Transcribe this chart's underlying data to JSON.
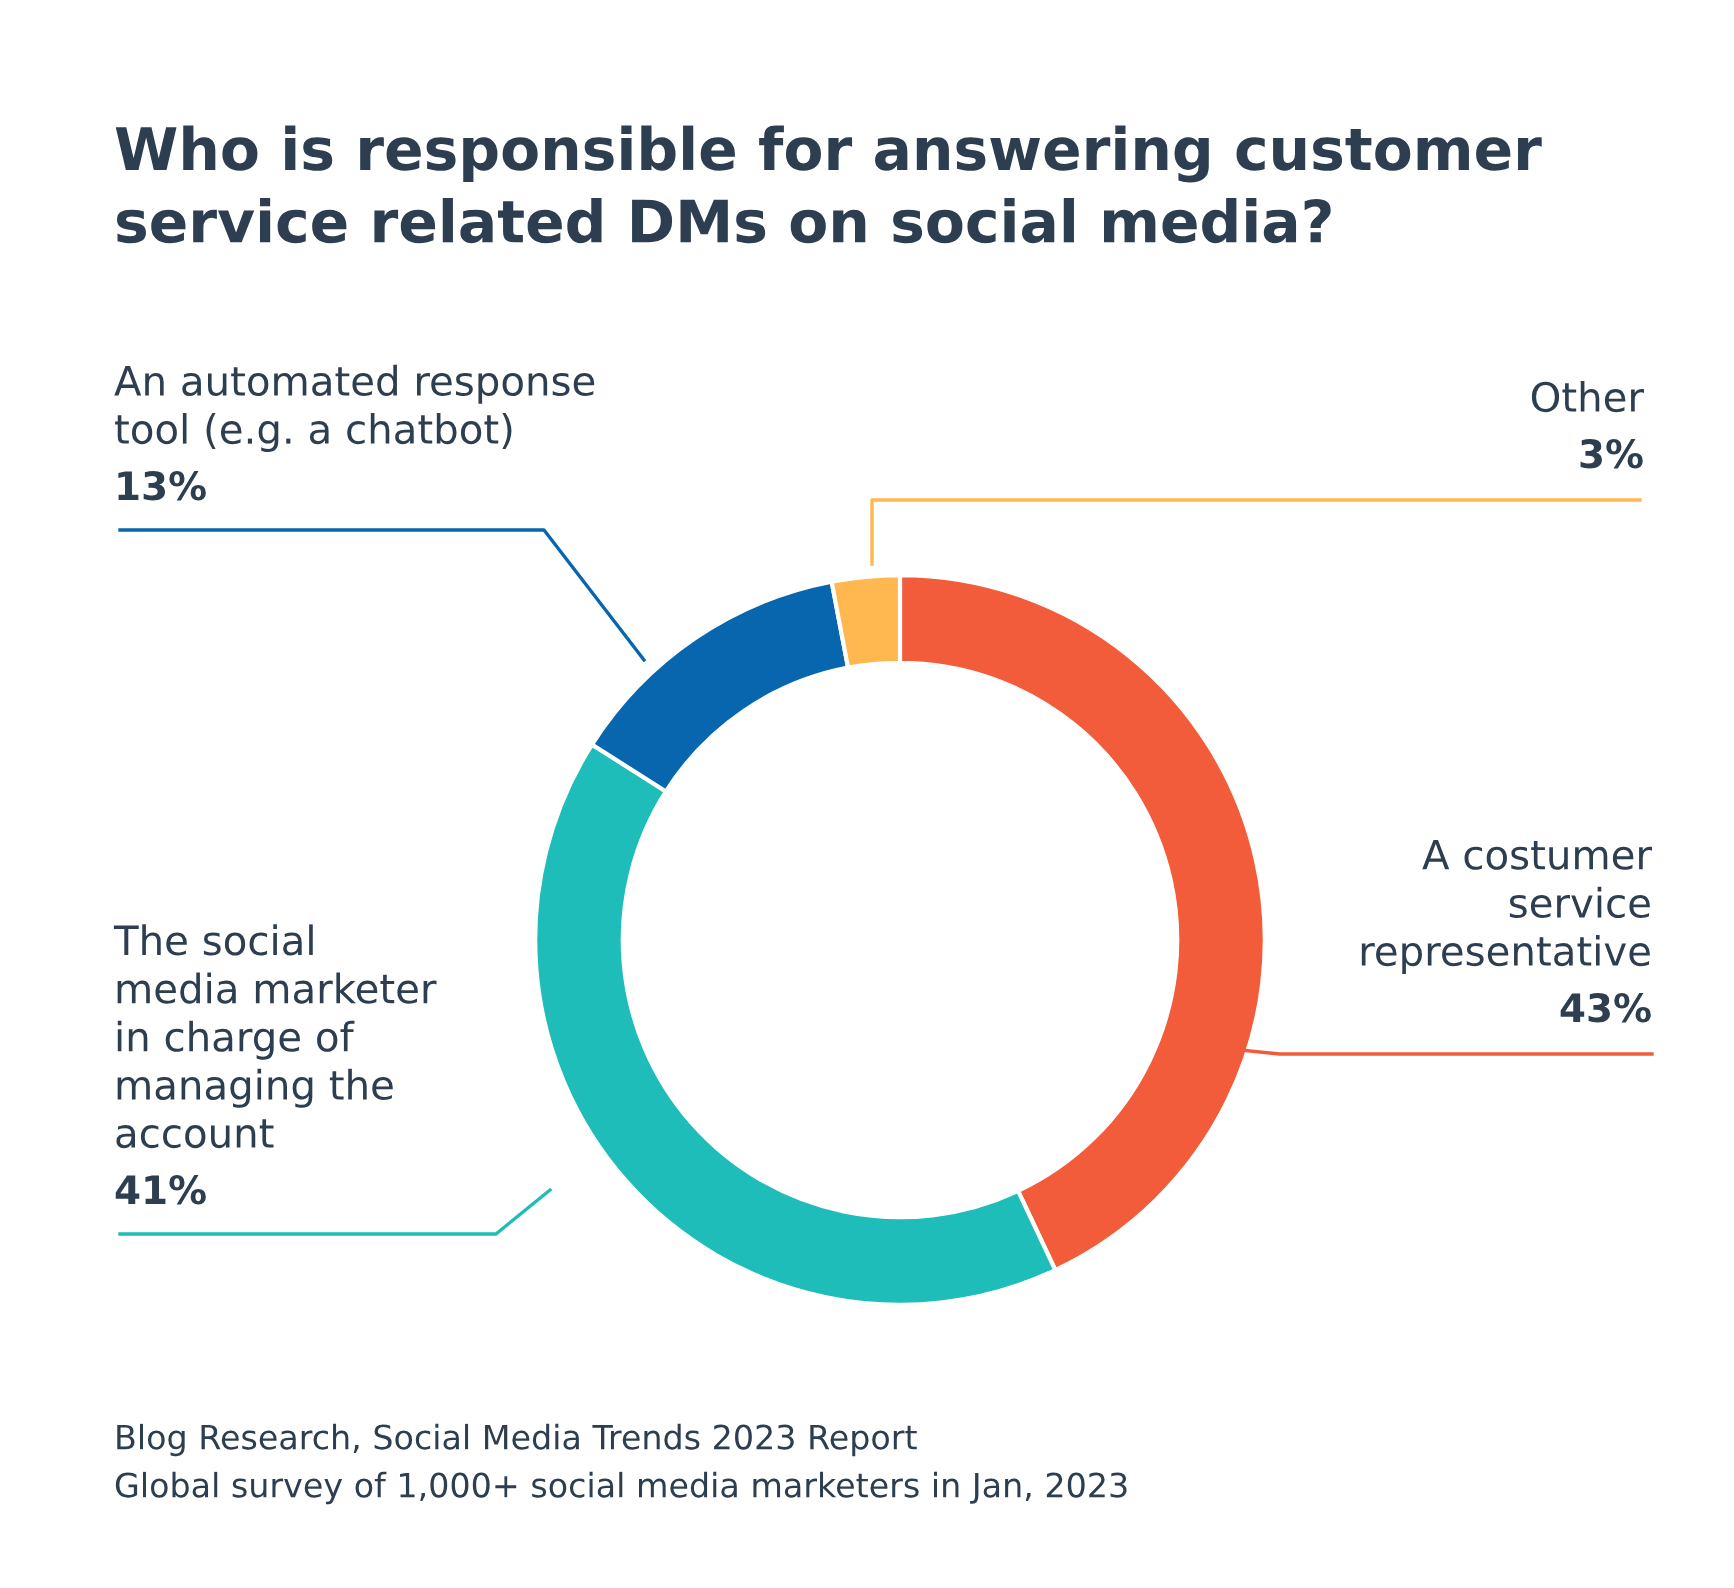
{
  "chart_data": {
    "type": "donut",
    "title": "Who is responsible for answering customer service related DMs on social media?",
    "categories": [
      "A costumer service representative",
      "The social media marketer in charge of managing the account",
      "An automated response tool (e.g. a chatbot)",
      "Other"
    ],
    "values": [
      43,
      41,
      13,
      3
    ],
    "colors": [
      "#f25c3b",
      "#1fbdba",
      "#0766ae",
      "#feb84f"
    ],
    "value_labels": [
      "43%",
      "41%",
      "13%",
      "3%"
    ],
    "legend": false,
    "annotations": [
      "Blog Research, Social Media Trends 2023 Report",
      "Global survey of 1,000+ social media marketers in Jan, 2023"
    ]
  }
}
